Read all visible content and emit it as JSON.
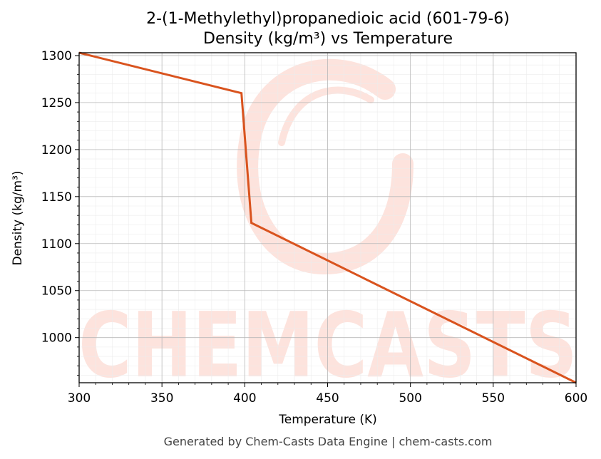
{
  "chart_data": {
    "type": "line",
    "title": "2-(1-Methylethyl)propanedioic acid (601-79-6)",
    "subtitle": "Density (kg/m³) vs Temperature",
    "xlabel": "Temperature (K)",
    "ylabel": "Density (kg/m³)",
    "xlim": [
      300,
      600
    ],
    "ylim": [
      952,
      1303
    ],
    "x_ticks": [
      300,
      350,
      400,
      450,
      500,
      550,
      600
    ],
    "y_ticks": [
      1000,
      1050,
      1100,
      1150,
      1200,
      1250,
      1300
    ],
    "grid": true,
    "minor_grid": true,
    "line_color": "#d9531e",
    "series": [
      {
        "x": [
          300,
          398,
          404,
          600
        ],
        "y": [
          1303,
          1260,
          1122,
          952
        ]
      }
    ]
  },
  "footer": "Generated by Chem-Casts Data Engine | chem-casts.com",
  "watermark": {
    "text": "CHEMCASTS",
    "color": "#fde3dd"
  }
}
